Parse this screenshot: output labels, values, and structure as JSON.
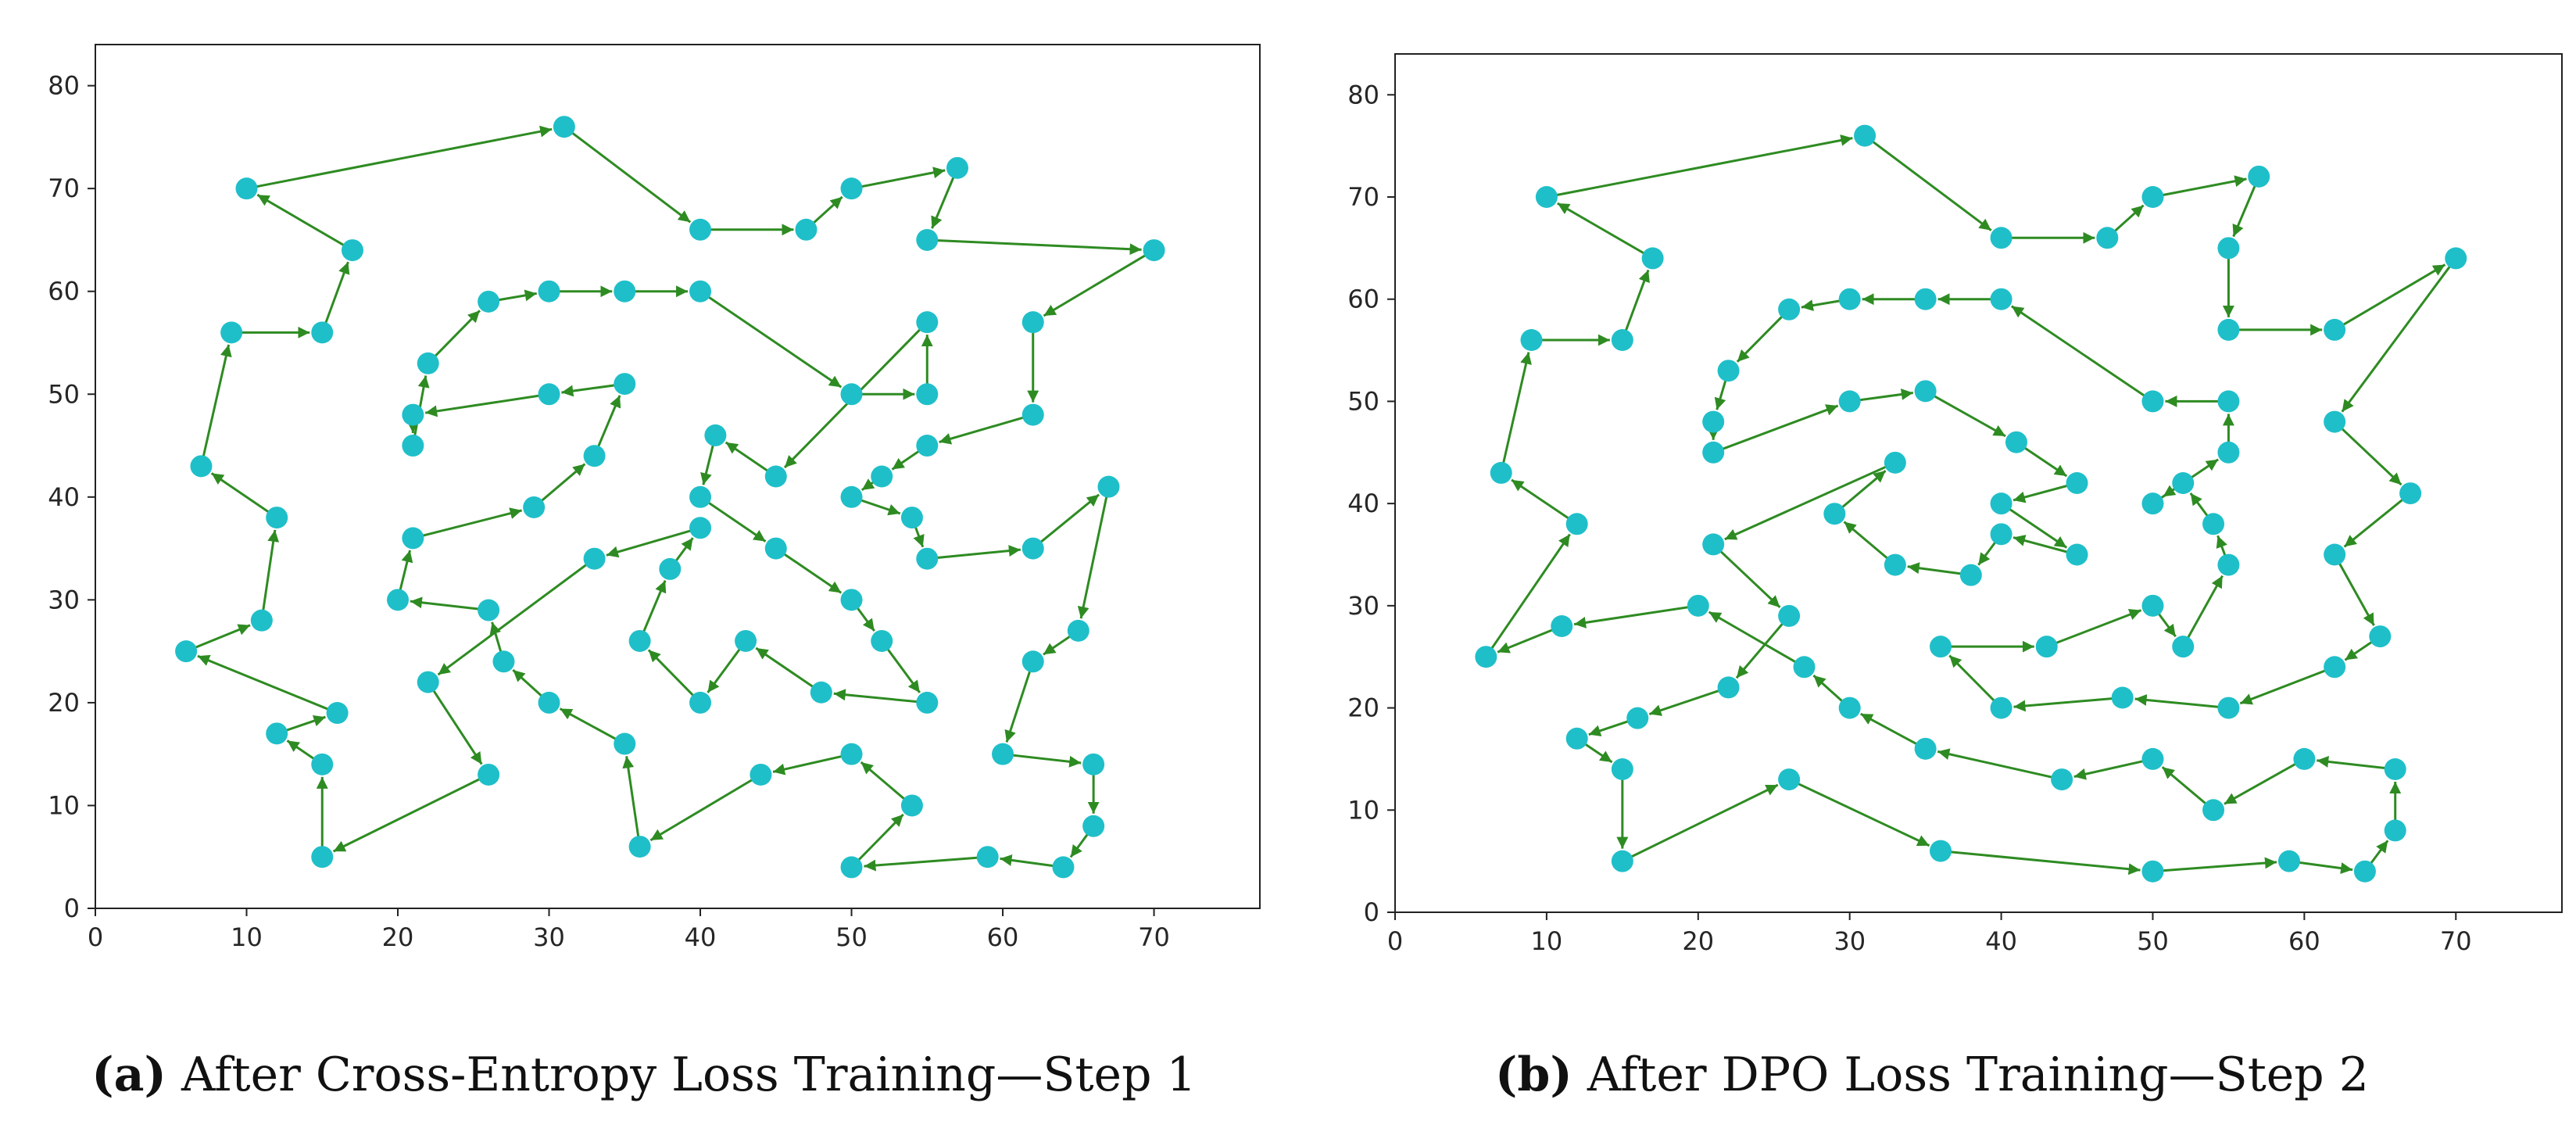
{
  "chart_data": [
    {
      "type": "line",
      "panel_label": "(a)",
      "caption": "After Cross-Entropy Loss Training—Step 1",
      "xlim": [
        0,
        77
      ],
      "ylim": [
        0,
        84
      ],
      "xticks": [
        0,
        10,
        20,
        30,
        40,
        50,
        60,
        70
      ],
      "yticks": [
        0,
        10,
        20,
        30,
        40,
        50,
        60,
        70,
        80
      ],
      "line_color": "#2e8b22",
      "marker_color": "#1fbfc9",
      "tour": [
        [
          10,
          70
        ],
        [
          31,
          76
        ],
        [
          40,
          66
        ],
        [
          47,
          66
        ],
        [
          50,
          70
        ],
        [
          57,
          72
        ],
        [
          55,
          65
        ],
        [
          70,
          64
        ],
        [
          62,
          57
        ],
        [
          62,
          48
        ],
        [
          55,
          45
        ],
        [
          52,
          42
        ],
        [
          50,
          40
        ],
        [
          54,
          38
        ],
        [
          55,
          34
        ],
        [
          62,
          35
        ],
        [
          67,
          41
        ],
        [
          65,
          27
        ],
        [
          62,
          24
        ],
        [
          60,
          15
        ],
        [
          66,
          14
        ],
        [
          66,
          8
        ],
        [
          64,
          4
        ],
        [
          59,
          5
        ],
        [
          50,
          4
        ],
        [
          54,
          10
        ],
        [
          50,
          15
        ],
        [
          44,
          13
        ],
        [
          36,
          6
        ],
        [
          35,
          16
        ],
        [
          30,
          20
        ],
        [
          27,
          24
        ],
        [
          26,
          29
        ],
        [
          20,
          30
        ],
        [
          21,
          36
        ],
        [
          29,
          39
        ],
        [
          33,
          44
        ],
        [
          35,
          51
        ],
        [
          30,
          50
        ],
        [
          21,
          48
        ],
        [
          21,
          45
        ],
        [
          22,
          53
        ],
        [
          26,
          59
        ],
        [
          30,
          60
        ],
        [
          35,
          60
        ],
        [
          40,
          60
        ],
        [
          50,
          50
        ],
        [
          55,
          50
        ],
        [
          55,
          57
        ],
        [
          45,
          42
        ],
        [
          41,
          46
        ],
        [
          40,
          40
        ],
        [
          45,
          35
        ],
        [
          50,
          30
        ],
        [
          52,
          26
        ],
        [
          55,
          20
        ],
        [
          48,
          21
        ],
        [
          43,
          26
        ],
        [
          40,
          20
        ],
        [
          36,
          26
        ],
        [
          38,
          33
        ],
        [
          40,
          37
        ],
        [
          33,
          34
        ],
        [
          22,
          22
        ],
        [
          26,
          13
        ],
        [
          15,
          5
        ],
        [
          15,
          14
        ],
        [
          12,
          17
        ],
        [
          16,
          19
        ],
        [
          6,
          25
        ],
        [
          11,
          28
        ],
        [
          12,
          38
        ],
        [
          7,
          43
        ],
        [
          9,
          56
        ],
        [
          15,
          56
        ],
        [
          17,
          64
        ],
        [
          10,
          70
        ]
      ]
    },
    {
      "type": "line",
      "panel_label": "(b)",
      "caption": "After DPO Loss Training—Step 2",
      "xlim": [
        0,
        77
      ],
      "ylim": [
        0,
        84
      ],
      "xticks": [
        0,
        10,
        20,
        30,
        40,
        50,
        60,
        70
      ],
      "yticks": [
        0,
        10,
        20,
        30,
        40,
        50,
        60,
        70,
        80
      ],
      "line_color": "#2e8b22",
      "marker_color": "#1fbfc9",
      "tour": [
        [
          10,
          70
        ],
        [
          31,
          76
        ],
        [
          40,
          66
        ],
        [
          47,
          66
        ],
        [
          50,
          70
        ],
        [
          57,
          72
        ],
        [
          55,
          65
        ],
        [
          55,
          57
        ],
        [
          62,
          57
        ],
        [
          70,
          64
        ],
        [
          62,
          48
        ],
        [
          67,
          41
        ],
        [
          62,
          35
        ],
        [
          65,
          27
        ],
        [
          62,
          24
        ],
        [
          55,
          20
        ],
        [
          48,
          21
        ],
        [
          40,
          20
        ],
        [
          36,
          26
        ],
        [
          43,
          26
        ],
        [
          50,
          30
        ],
        [
          52,
          26
        ],
        [
          55,
          34
        ],
        [
          54,
          38
        ],
        [
          52,
          42
        ],
        [
          50,
          40
        ],
        [
          55,
          45
        ],
        [
          55,
          50
        ],
        [
          50,
          50
        ],
        [
          40,
          60
        ],
        [
          35,
          60
        ],
        [
          30,
          60
        ],
        [
          26,
          59
        ],
        [
          22,
          53
        ],
        [
          21,
          48
        ],
        [
          21,
          45
        ],
        [
          30,
          50
        ],
        [
          35,
          51
        ],
        [
          41,
          46
        ],
        [
          45,
          42
        ],
        [
          40,
          40
        ],
        [
          45,
          35
        ],
        [
          40,
          37
        ],
        [
          38,
          33
        ],
        [
          33,
          34
        ],
        [
          29,
          39
        ],
        [
          33,
          44
        ],
        [
          21,
          36
        ],
        [
          26,
          29
        ],
        [
          22,
          22
        ],
        [
          16,
          19
        ],
        [
          12,
          17
        ],
        [
          15,
          14
        ],
        [
          15,
          5
        ],
        [
          26,
          13
        ],
        [
          36,
          6
        ],
        [
          50,
          4
        ],
        [
          59,
          5
        ],
        [
          64,
          4
        ],
        [
          66,
          8
        ],
        [
          66,
          14
        ],
        [
          60,
          15
        ],
        [
          54,
          10
        ],
        [
          50,
          15
        ],
        [
          44,
          13
        ],
        [
          35,
          16
        ],
        [
          30,
          20
        ],
        [
          27,
          24
        ],
        [
          20,
          30
        ],
        [
          11,
          28
        ],
        [
          6,
          25
        ],
        [
          12,
          38
        ],
        [
          7,
          43
        ],
        [
          9,
          56
        ],
        [
          15,
          56
        ],
        [
          17,
          64
        ],
        [
          10,
          70
        ]
      ]
    }
  ]
}
